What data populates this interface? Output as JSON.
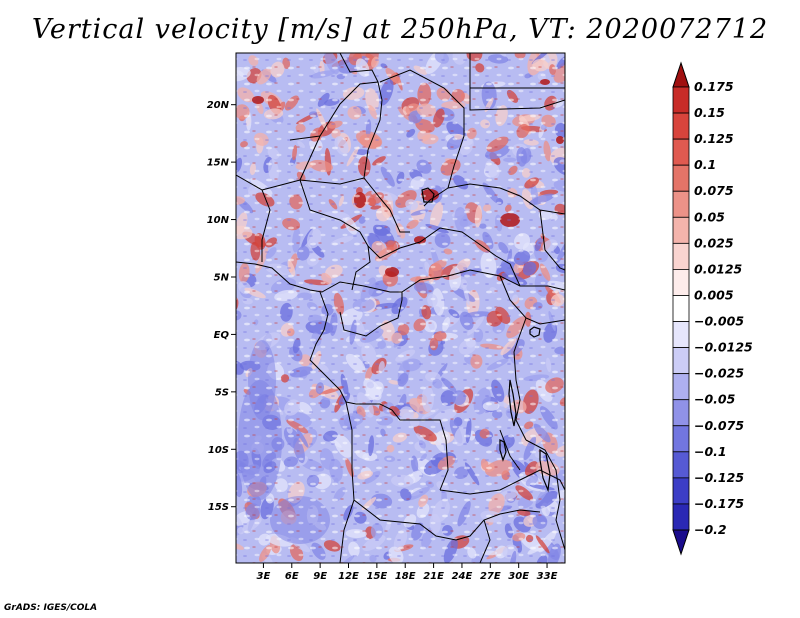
{
  "title": "Vertical velocity [m/s] at 250hPa, VT: 2020072712",
  "credit": "GrADS: IGES/COLA",
  "map": {
    "lat_labels": [
      "20N",
      "15N",
      "10N",
      "5N",
      "EQ",
      "5S",
      "10S",
      "15S"
    ],
    "lon_labels": [
      "3E",
      "6E",
      "9E",
      "12E",
      "15E",
      "18E",
      "21E",
      "24E",
      "27E",
      "30E",
      "33E"
    ],
    "lat_values": [
      20,
      15,
      10,
      5,
      0,
      -5,
      -10,
      -15
    ],
    "lon_values": [
      3,
      6,
      9,
      12,
      15,
      18,
      21,
      24,
      27,
      30,
      33
    ],
    "lat_range": [
      -19.9,
      24.5
    ],
    "lon_range": [
      0.1,
      34.9
    ]
  },
  "colorbar": {
    "labels": [
      "0.175",
      "0.15",
      "0.125",
      "0.1",
      "0.075",
      "0.05",
      "0.025",
      "0.0125",
      "0.005",
      "−0.005",
      "−0.0125",
      "−0.025",
      "−0.05",
      "−0.075",
      "−0.1",
      "−0.125",
      "−0.175",
      "−0.2"
    ],
    "colors": [
      "#b01818",
      "#c82c28",
      "#d8443c",
      "#e05a50",
      "#e47468",
      "#ec9288",
      "#f4b4ac",
      "#f9d4d0",
      "#fdeceb",
      "#ffffff",
      "#e6e6fc",
      "#cccdf6",
      "#aeb0f0",
      "#9092e8",
      "#7276e0",
      "#565ad4",
      "#3c3ec6",
      "#2a28b4",
      "#1c129a"
    ],
    "arrow_top_color": "#a01010",
    "arrow_bottom_color": "#1a0c8c"
  }
}
